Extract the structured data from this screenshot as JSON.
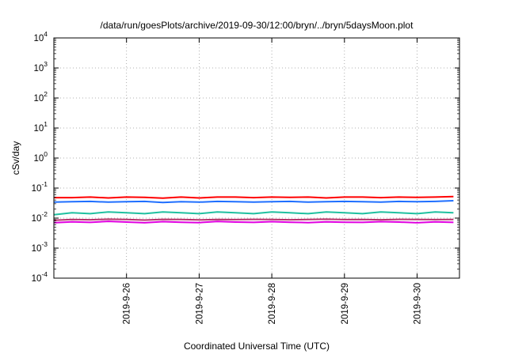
{
  "chart_data": {
    "type": "line",
    "title": "/data/run/goesPlots/archive/2019-09-30/12:00/bryn/../bryn/5daysMoon.plot",
    "xlabel": "Coordinated Universal Time (UTC)",
    "ylabel": "cSv/day",
    "y_scale": "log",
    "ylim": [
      0.0001,
      10000
    ],
    "y_ticks": [
      {
        "value": 0.0001,
        "base": "10",
        "exp": "-4"
      },
      {
        "value": 0.001,
        "base": "10",
        "exp": "-3"
      },
      {
        "value": 0.01,
        "base": "10",
        "exp": "-2"
      },
      {
        "value": 0.1,
        "base": "10",
        "exp": "-1"
      },
      {
        "value": 1,
        "base": "10",
        "exp": "0"
      },
      {
        "value": 10,
        "base": "10",
        "exp": "1"
      },
      {
        "value": 100,
        "base": "10",
        "exp": "2"
      },
      {
        "value": 1000,
        "base": "10",
        "exp": "3"
      },
      {
        "value": 10000,
        "base": "10",
        "exp": "4"
      }
    ],
    "x_ticks": [
      "2019-9-26",
      "2019-9-27",
      "2019-9-28",
      "2019-9-29",
      "2019-9-30"
    ],
    "xlim": [
      "2019-09-25T00:00",
      "2019-09-30T14:00"
    ],
    "grid": true,
    "series": [
      {
        "color": "#ff0000",
        "x": [
          "2019-09-25T00:00",
          "2019-09-25T06:00",
          "2019-09-25T12:00",
          "2019-09-25T18:00",
          "2019-09-26T00:00",
          "2019-09-26T06:00",
          "2019-09-26T12:00",
          "2019-09-26T18:00",
          "2019-09-27T00:00",
          "2019-09-27T06:00",
          "2019-09-27T12:00",
          "2019-09-27T18:00",
          "2019-09-28T00:00",
          "2019-09-28T06:00",
          "2019-09-28T12:00",
          "2019-09-28T18:00",
          "2019-09-29T00:00",
          "2019-09-29T06:00",
          "2019-09-29T12:00",
          "2019-09-29T18:00",
          "2019-09-30T00:00",
          "2019-09-30T06:00",
          "2019-09-30T12:00"
        ],
        "values": [
          0.048,
          0.048,
          0.05,
          0.047,
          0.05,
          0.049,
          0.046,
          0.05,
          0.047,
          0.05,
          0.05,
          0.048,
          0.05,
          0.049,
          0.05,
          0.047,
          0.05,
          0.05,
          0.048,
          0.05,
          0.049,
          0.05,
          0.052
        ]
      },
      {
        "color": "#1f6fff",
        "x": [
          "2019-09-25T00:00",
          "2019-09-25T06:00",
          "2019-09-25T12:00",
          "2019-09-25T18:00",
          "2019-09-26T00:00",
          "2019-09-26T06:00",
          "2019-09-26T12:00",
          "2019-09-26T18:00",
          "2019-09-27T00:00",
          "2019-09-27T06:00",
          "2019-09-27T12:00",
          "2019-09-27T18:00",
          "2019-09-28T00:00",
          "2019-09-28T06:00",
          "2019-09-28T12:00",
          "2019-09-28T18:00",
          "2019-09-29T00:00",
          "2019-09-29T06:00",
          "2019-09-29T12:00",
          "2019-09-29T18:00",
          "2019-09-30T00:00",
          "2019-09-30T06:00",
          "2019-09-30T12:00"
        ],
        "values": [
          0.034,
          0.035,
          0.036,
          0.034,
          0.035,
          0.036,
          0.033,
          0.035,
          0.034,
          0.036,
          0.035,
          0.034,
          0.035,
          0.036,
          0.034,
          0.035,
          0.036,
          0.035,
          0.034,
          0.036,
          0.035,
          0.036,
          0.038
        ]
      },
      {
        "color": "#20c0a0",
        "x": [
          "2019-09-25T00:00",
          "2019-09-25T06:00",
          "2019-09-25T12:00",
          "2019-09-25T18:00",
          "2019-09-26T00:00",
          "2019-09-26T06:00",
          "2019-09-26T12:00",
          "2019-09-26T18:00",
          "2019-09-27T00:00",
          "2019-09-27T06:00",
          "2019-09-27T12:00",
          "2019-09-27T18:00",
          "2019-09-28T00:00",
          "2019-09-28T06:00",
          "2019-09-28T12:00",
          "2019-09-28T18:00",
          "2019-09-29T00:00",
          "2019-09-29T06:00",
          "2019-09-29T12:00",
          "2019-09-29T18:00",
          "2019-09-30T00:00",
          "2019-09-30T06:00",
          "2019-09-30T12:00"
        ],
        "values": [
          0.013,
          0.015,
          0.014,
          0.016,
          0.015,
          0.014,
          0.016,
          0.015,
          0.014,
          0.016,
          0.015,
          0.014,
          0.016,
          0.015,
          0.014,
          0.016,
          0.015,
          0.014,
          0.016,
          0.015,
          0.014,
          0.016,
          0.015
        ]
      },
      {
        "color": "#b8336a",
        "x": [
          "2019-09-25T00:00",
          "2019-09-25T06:00",
          "2019-09-25T12:00",
          "2019-09-25T18:00",
          "2019-09-26T00:00",
          "2019-09-26T06:00",
          "2019-09-26T12:00",
          "2019-09-26T18:00",
          "2019-09-27T00:00",
          "2019-09-27T06:00",
          "2019-09-27T12:00",
          "2019-09-27T18:00",
          "2019-09-28T00:00",
          "2019-09-28T06:00",
          "2019-09-28T12:00",
          "2019-09-28T18:00",
          "2019-09-29T00:00",
          "2019-09-29T06:00",
          "2019-09-29T12:00",
          "2019-09-29T18:00",
          "2019-09-30T00:00",
          "2019-09-30T06:00",
          "2019-09-30T12:00"
        ],
        "values": [
          0.0085,
          0.009,
          0.0088,
          0.0092,
          0.009,
          0.0086,
          0.0091,
          0.009,
          0.0087,
          0.009,
          0.0089,
          0.0091,
          0.009,
          0.0088,
          0.009,
          0.0092,
          0.0089,
          0.009,
          0.0088,
          0.0091,
          0.009,
          0.0089,
          0.009
        ]
      },
      {
        "color": "#e000e0",
        "x": [
          "2019-09-25T00:00",
          "2019-09-25T06:00",
          "2019-09-25T12:00",
          "2019-09-25T18:00",
          "2019-09-26T00:00",
          "2019-09-26T06:00",
          "2019-09-26T12:00",
          "2019-09-26T18:00",
          "2019-09-27T00:00",
          "2019-09-27T06:00",
          "2019-09-27T12:00",
          "2019-09-27T18:00",
          "2019-09-28T00:00",
          "2019-09-28T06:00",
          "2019-09-28T12:00",
          "2019-09-28T18:00",
          "2019-09-29T00:00",
          "2019-09-29T06:00",
          "2019-09-29T12:00",
          "2019-09-29T18:00",
          "2019-09-30T00:00",
          "2019-09-30T06:00",
          "2019-09-30T12:00"
        ],
        "values": [
          0.007,
          0.0075,
          0.0072,
          0.0078,
          0.0074,
          0.007,
          0.0076,
          0.0073,
          0.0071,
          0.0077,
          0.0074,
          0.0072,
          0.0076,
          0.0073,
          0.0071,
          0.0075,
          0.0073,
          0.0072,
          0.0076,
          0.0074,
          0.007,
          0.0075,
          0.0072
        ]
      }
    ]
  }
}
